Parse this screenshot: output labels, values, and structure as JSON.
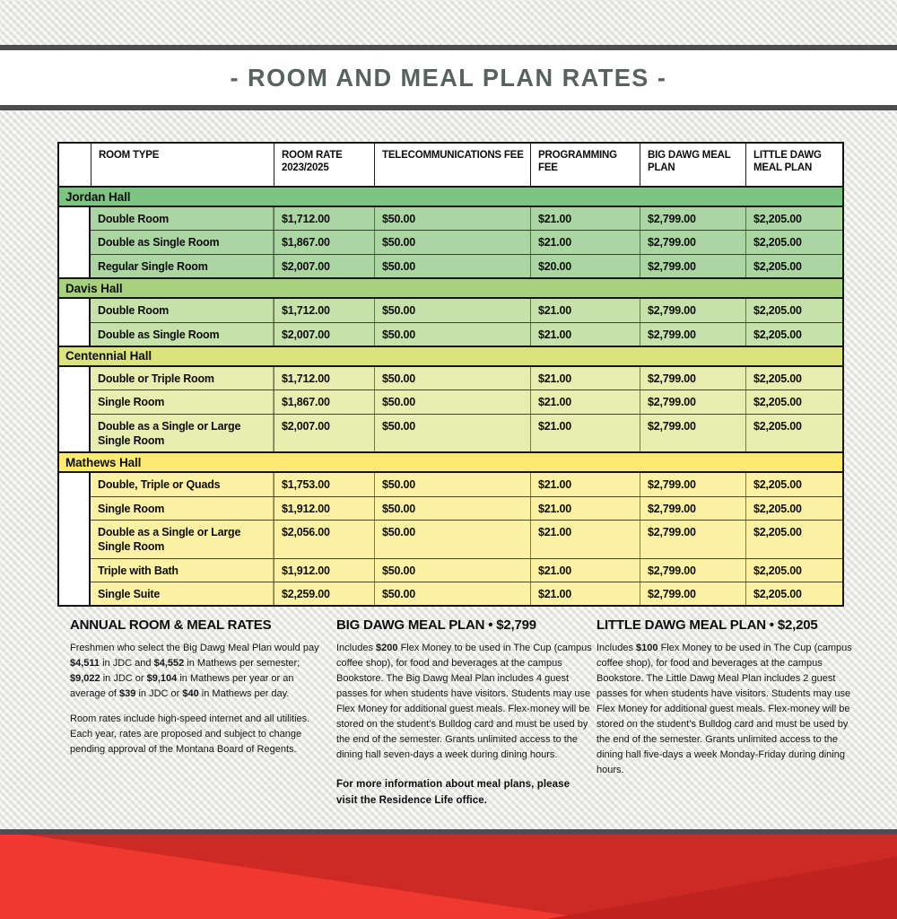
{
  "page": {
    "title": "- ROOM AND MEAL PLAN RATES -"
  },
  "colors": {
    "rule": "#4d4d4d",
    "jordan_bar": "#7dc483",
    "jordan_row": "#abd6a4",
    "davis_bar": "#a7d17d",
    "davis_row": "#c6e1a9",
    "centennial_bar": "#dbe47c",
    "centennial_row": "#e7eeb0",
    "mathews_bar": "#fdea72",
    "mathews_row": "#fdf2a3",
    "footer_base": "#ce2a25",
    "footer_bright": "#ee3830",
    "footer_dark": "#c0231f"
  },
  "table": {
    "headers": [
      "",
      "ROOM TYPE",
      "ROOM RATE\n2023/2025",
      "TELECOMMUNICATIONS FEE",
      "PROGRAMMING\nFEE",
      "BIG DAWG MEAL\nPLAN",
      "LITTLE DAWG\nMEAL PLAN"
    ],
    "sections": [
      {
        "name": "Jordan Hall",
        "theme": "jordan",
        "rows": [
          [
            "Double Room",
            "$1,712.00",
            "$50.00",
            "$21.00",
            "$2,799.00",
            "$2,205.00"
          ],
          [
            "Double as Single Room",
            "$1,867.00",
            "$50.00",
            "$21.00",
            "$2,799.00",
            "$2,205.00"
          ],
          [
            "Regular Single Room",
            "$2,007.00",
            "$50.00",
            "$20.00",
            "$2,799.00",
            "$2,205.00"
          ]
        ]
      },
      {
        "name": "Davis Hall",
        "theme": "davis",
        "rows": [
          [
            "Double Room",
            "$1,712.00",
            "$50.00",
            "$21.00",
            "$2,799.00",
            "$2,205.00"
          ],
          [
            "Double as Single Room",
            "$2,007.00",
            "$50.00",
            "$21.00",
            "$2,799.00",
            "$2,205.00"
          ]
        ]
      },
      {
        "name": "Centennial Hall",
        "theme": "centennial",
        "rows": [
          [
            "Double or Triple Room",
            "$1,712.00",
            "$50.00",
            "$21.00",
            "$2,799.00",
            "$2,205.00"
          ],
          [
            "Single Room",
            "$1,867.00",
            "$50.00",
            "$21.00",
            "$2,799.00",
            "$2,205.00"
          ],
          [
            "Double as a Single or Large Single Room",
            "$2,007.00",
            "$50.00",
            "$21.00",
            "$2,799.00",
            "$2,205.00"
          ]
        ]
      },
      {
        "name": "Mathews Hall",
        "theme": "mathews",
        "rows": [
          [
            "Double, Triple or Quads",
            "$1,753.00",
            "$50.00",
            "$21.00",
            "$2,799.00",
            "$2,205.00"
          ],
          [
            "Single Room",
            "$1,912.00",
            "$50.00",
            "$21.00",
            "$2,799.00",
            "$2,205.00"
          ],
          [
            "Double as a Single or Large Single Room",
            "$2,056.00",
            "$50.00",
            "$21.00",
            "$2,799.00",
            "$2,205.00"
          ],
          [
            "Triple with Bath",
            "$1,912.00",
            "$50.00",
            "$21.00",
            "$2,799.00",
            "$2,205.00"
          ],
          [
            "Single Suite",
            "$2,259.00",
            "$50.00",
            "$21.00",
            "$2,799.00",
            "$2,205.00"
          ]
        ]
      }
    ]
  },
  "notes": {
    "annual": {
      "heading": "ANNUAL ROOM & MEAL RATES",
      "para1": [
        {
          "t": "Freshmen who select the Big Dawg Meal Plan would pay "
        },
        {
          "t": "$4,511",
          "b": true
        },
        {
          "t": " in JDC and "
        },
        {
          "t": "$4,552",
          "b": true
        },
        {
          "t": " in Mathews per semester; "
        },
        {
          "t": "$9,022",
          "b": true
        },
        {
          "t": " in JDC or "
        },
        {
          "t": "$9,104",
          "b": true
        },
        {
          "t": " in Mathews per year or an average of "
        },
        {
          "t": "$39",
          "b": true
        },
        {
          "t": "  in JDC or "
        },
        {
          "t": "$40",
          "b": true
        },
        {
          "t": " in Mathews per day."
        }
      ],
      "para2": [
        {
          "t": "Room rates include high-speed internet and all utilities. Each year, rates are proposed and subject to change pending approval of the Montana Board of Regents."
        }
      ]
    },
    "big_dawg": {
      "heading": "BIG DAWG MEAL PLAN • $2,799",
      "para": [
        {
          "t": "Includes "
        },
        {
          "t": "$200",
          "b": true
        },
        {
          "t": " Flex Money to be used in The Cup (campus coffee shop), for food and beverages at the campus Bookstore. The Big Dawg Meal Plan includes 4 guest passes for when students have visitors. Students may use Flex Money for additional guest meals. Flex-money will be stored on the student's Bulldog card and must be used by the end of the semester. Grants unlimited access to the dining hall seven-days a week during dining hours."
        }
      ],
      "footer": [
        {
          "t": "For more information about meal plans, please visit the Residence Life office.",
          "b": true
        }
      ]
    },
    "little_dawg": {
      "heading": "LITTLE DAWG MEAL PLAN • $2,205",
      "para": [
        {
          "t": "Includes "
        },
        {
          "t": "$100",
          "b": true
        },
        {
          "t": " Flex Money to be used in The Cup (campus coffee shop), for food and beverages at the campus Bookstore. The Little Dawg Meal Plan includes 2 guest passes for when students have visitors. Students may use Flex Money for additional guest meals. Flex-money will be stored on the student's Bulldog card and must be used by the end of the semester. Grants unlimited access to the dining hall five-days a week Monday-Friday during dining hours."
        }
      ]
    }
  }
}
